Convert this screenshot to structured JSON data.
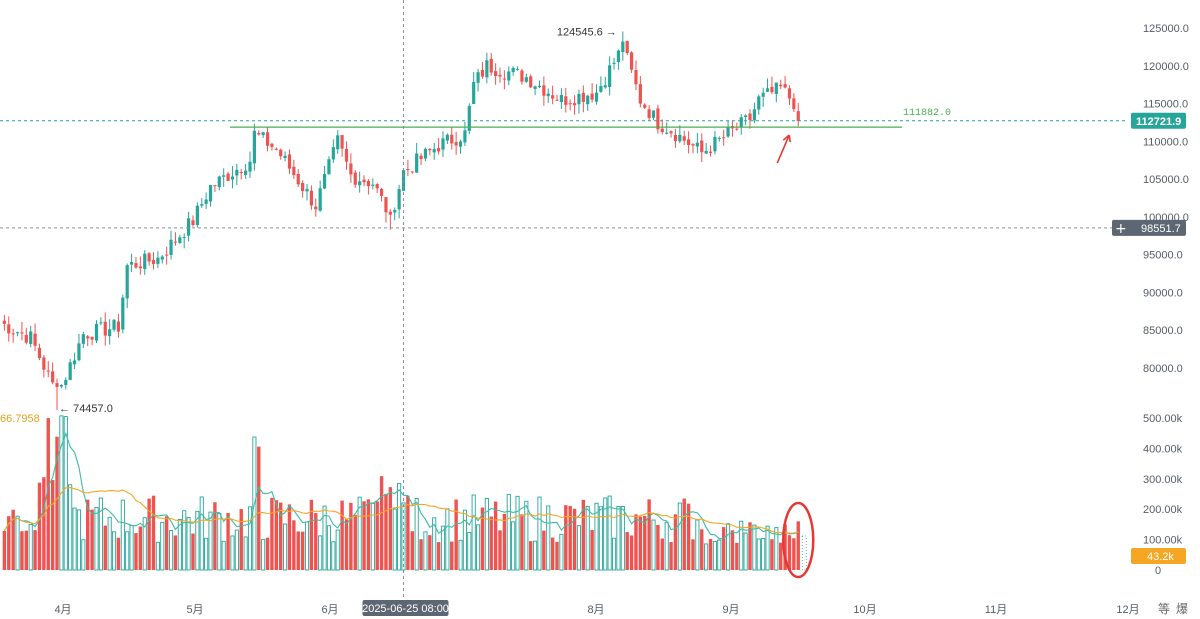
{
  "chart_data": [
    {
      "type": "candlestick",
      "title": "",
      "x_tick_labels": [
        "4月",
        "5月",
        "6月",
        "8月",
        "9月",
        "10月",
        "11月",
        "12月"
      ],
      "y_tick_labels": [
        "125000.0",
        "120000.0",
        "115000.0",
        "110000.0",
        "105000.0",
        "100000.0",
        "95000.0",
        "90000.0",
        "85000.0",
        "80000.0"
      ],
      "ylim": [
        76000,
        128000
      ],
      "y_ticks": [
        125000,
        120000,
        115000,
        110000,
        105000,
        100000,
        95000,
        90000,
        85000,
        80000
      ],
      "annotations": {
        "high_label": "124545.6 →",
        "low_label": "← 74457.0",
        "level_label": "111882.0",
        "crosshair_date": "2025-06-25 08:00"
      },
      "price_tags": {
        "current": "112721.9",
        "crosshair": "98551.7"
      },
      "levels": {
        "high": 124545.6,
        "low": 74457.0,
        "support": 111882.0,
        "current": 112721.9,
        "crosshair": 98551.7
      },
      "ohlc_keypoints": [
        [
          "03-25",
          86000
        ],
        [
          "04-01",
          84000
        ],
        [
          "04-07",
          76500
        ],
        [
          "04-09",
          79000
        ],
        [
          "04-13",
          84500
        ],
        [
          "04-21",
          85500
        ],
        [
          "04-23",
          93500
        ],
        [
          "04-30",
          94500
        ],
        [
          "05-08",
          99500
        ],
        [
          "05-12",
          104000
        ],
        [
          "05-21",
          107500
        ],
        [
          "05-22",
          111000
        ],
        [
          "05-27",
          109000
        ],
        [
          "06-05",
          101500
        ],
        [
          "06-10",
          110000
        ],
        [
          "06-13",
          105500
        ],
        [
          "06-18",
          104500
        ],
        [
          "06-22",
          100000
        ],
        [
          "06-25",
          106000
        ],
        [
          "07-03",
          109500
        ],
        [
          "07-09",
          111000
        ],
        [
          "07-11",
          117500
        ],
        [
          "07-14",
          120000
        ],
        [
          "07-23",
          118500
        ],
        [
          "07-31",
          115500
        ],
        [
          "08-08",
          116500
        ],
        [
          "08-14",
          122500
        ],
        [
          "08-18",
          115500
        ],
        [
          "08-22",
          112500
        ],
        [
          "08-25",
          111500
        ],
        [
          "09-01",
          108500
        ],
        [
          "09-06",
          110500
        ],
        [
          "09-12",
          113000
        ],
        [
          "09-14",
          115500
        ],
        [
          "09-19",
          117000
        ],
        [
          "09-22",
          115200
        ],
        [
          "09-23",
          112700
        ]
      ],
      "colors": {
        "up": "#26a69a",
        "down": "#ef5350",
        "level": "#4caf50",
        "current_tag": "#26a69a",
        "crosshair_tag": "#5d6673"
      }
    },
    {
      "type": "bar",
      "title": "",
      "series_label": "66.7958",
      "y_tick_labels": [
        "500.00k",
        "400.00k",
        "300.00k",
        "200.00k",
        "100.00k",
        "0"
      ],
      "ylim": [
        0,
        520000
      ],
      "y_ticks": [
        500000,
        400000,
        300000,
        200000,
        100000,
        0
      ],
      "current_tag": "43.2k",
      "colors": {
        "up": "#26a69a",
        "down": "#ef5350",
        "ma_orange": "#f5a623",
        "ma_teal": "#3dbca4",
        "tag": "#f5a623"
      }
    }
  ],
  "toolbar": {
    "right_icons": [
      "等",
      "爆"
    ]
  }
}
